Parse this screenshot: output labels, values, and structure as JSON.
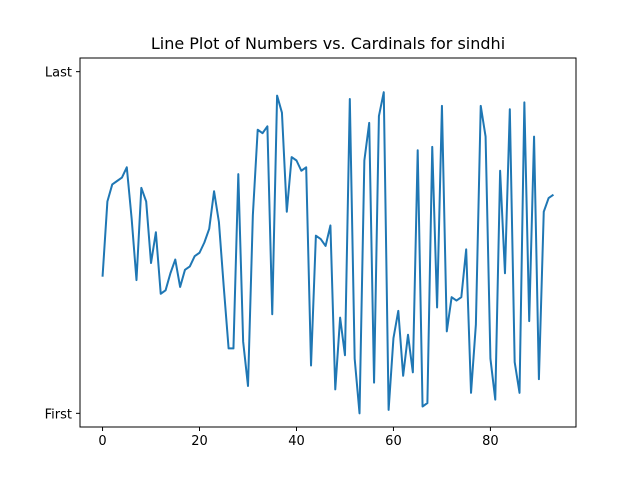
{
  "chart_data": {
    "type": "line",
    "title": "Line Plot of Numbers vs. Cardinals for sindhi",
    "xlabel": "",
    "ylabel": "",
    "xlim": [
      -4.65,
      97.65
    ],
    "ylim": [
      -0.04,
      1.04
    ],
    "x_ticks": [
      0,
      20,
      40,
      60,
      80
    ],
    "x_tick_labels": [
      "0",
      "20",
      "40",
      "60",
      "80"
    ],
    "y_ticks": [
      0,
      1
    ],
    "y_tick_labels": [
      "First",
      "Last"
    ],
    "grid": false,
    "legend": "none",
    "color": "#1f77b4",
    "series": [
      {
        "x": [
          0,
          1,
          2,
          3,
          4,
          5,
          6,
          7,
          8,
          9,
          10,
          11,
          12,
          13,
          14,
          15,
          16,
          17,
          18,
          19,
          20,
          21,
          22,
          23,
          24,
          25,
          26,
          27,
          28,
          29,
          30,
          31,
          32,
          33,
          34,
          35,
          36,
          37,
          38,
          39,
          40,
          41,
          42,
          43,
          44,
          45,
          46,
          47,
          48,
          49,
          50,
          51,
          52,
          53,
          54,
          55,
          56,
          57,
          58,
          59,
          60,
          61,
          62,
          63,
          64,
          65,
          66,
          67,
          68,
          69,
          70,
          71,
          72,
          73,
          74,
          75,
          76,
          77,
          78,
          79,
          80,
          81,
          82,
          83,
          84,
          85,
          86,
          87,
          88,
          89,
          90,
          91,
          92,
          93
        ],
        "values": [
          0.4,
          0.62,
          0.67,
          0.68,
          0.69,
          0.72,
          0.57,
          0.39,
          0.66,
          0.62,
          0.44,
          0.53,
          0.35,
          0.36,
          0.41,
          0.45,
          0.37,
          0.42,
          0.43,
          0.46,
          0.47,
          0.5,
          0.54,
          0.65,
          0.56,
          0.37,
          0.19,
          0.19,
          0.7,
          0.21,
          0.08,
          0.58,
          0.83,
          0.82,
          0.84,
          0.29,
          0.93,
          0.88,
          0.59,
          0.75,
          0.74,
          0.71,
          0.72,
          0.14,
          0.52,
          0.51,
          0.49,
          0.55,
          0.07,
          0.28,
          0.17,
          0.92,
          0.16,
          0.0,
          0.74,
          0.85,
          0.09,
          0.87,
          0.94,
          0.01,
          0.22,
          0.3,
          0.11,
          0.23,
          0.12,
          0.77,
          0.02,
          0.03,
          0.78,
          0.31,
          0.9,
          0.24,
          0.34,
          0.33,
          0.34,
          0.48,
          0.06,
          0.26,
          0.9,
          0.81,
          0.16,
          0.04,
          0.71,
          0.41,
          0.89,
          0.15,
          0.06,
          0.91,
          0.27,
          0.81,
          0.1,
          0.59,
          0.63,
          0.64
        ]
      }
    ]
  }
}
